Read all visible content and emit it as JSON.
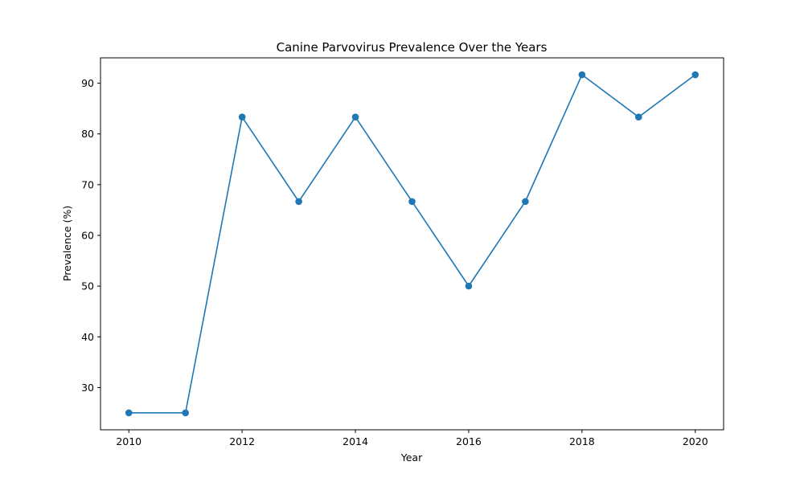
{
  "chart_data": {
    "type": "line",
    "title": "Canine Parvovirus Prevalence Over the Years",
    "xlabel": "Year",
    "ylabel": "Prevalence (%)",
    "x": [
      2010,
      2011,
      2012,
      2013,
      2014,
      2015,
      2016,
      2017,
      2018,
      2019,
      2020
    ],
    "series": [
      {
        "values": [
          25.0,
          25.0,
          83.33,
          66.67,
          83.33,
          66.67,
          50.0,
          66.67,
          91.67,
          83.33,
          91.67
        ],
        "color": "#1f77b4",
        "marker": "circle"
      }
    ],
    "xlim": [
      2009.5,
      2020.5
    ],
    "ylim": [
      21.67,
      95.0
    ],
    "x_ticks": [
      "2010",
      "2012",
      "2014",
      "2016",
      "2018",
      "2020"
    ],
    "y_ticks": [
      "30",
      "40",
      "50",
      "60",
      "70",
      "80",
      "90"
    ],
    "grid": false,
    "legend": false
  }
}
